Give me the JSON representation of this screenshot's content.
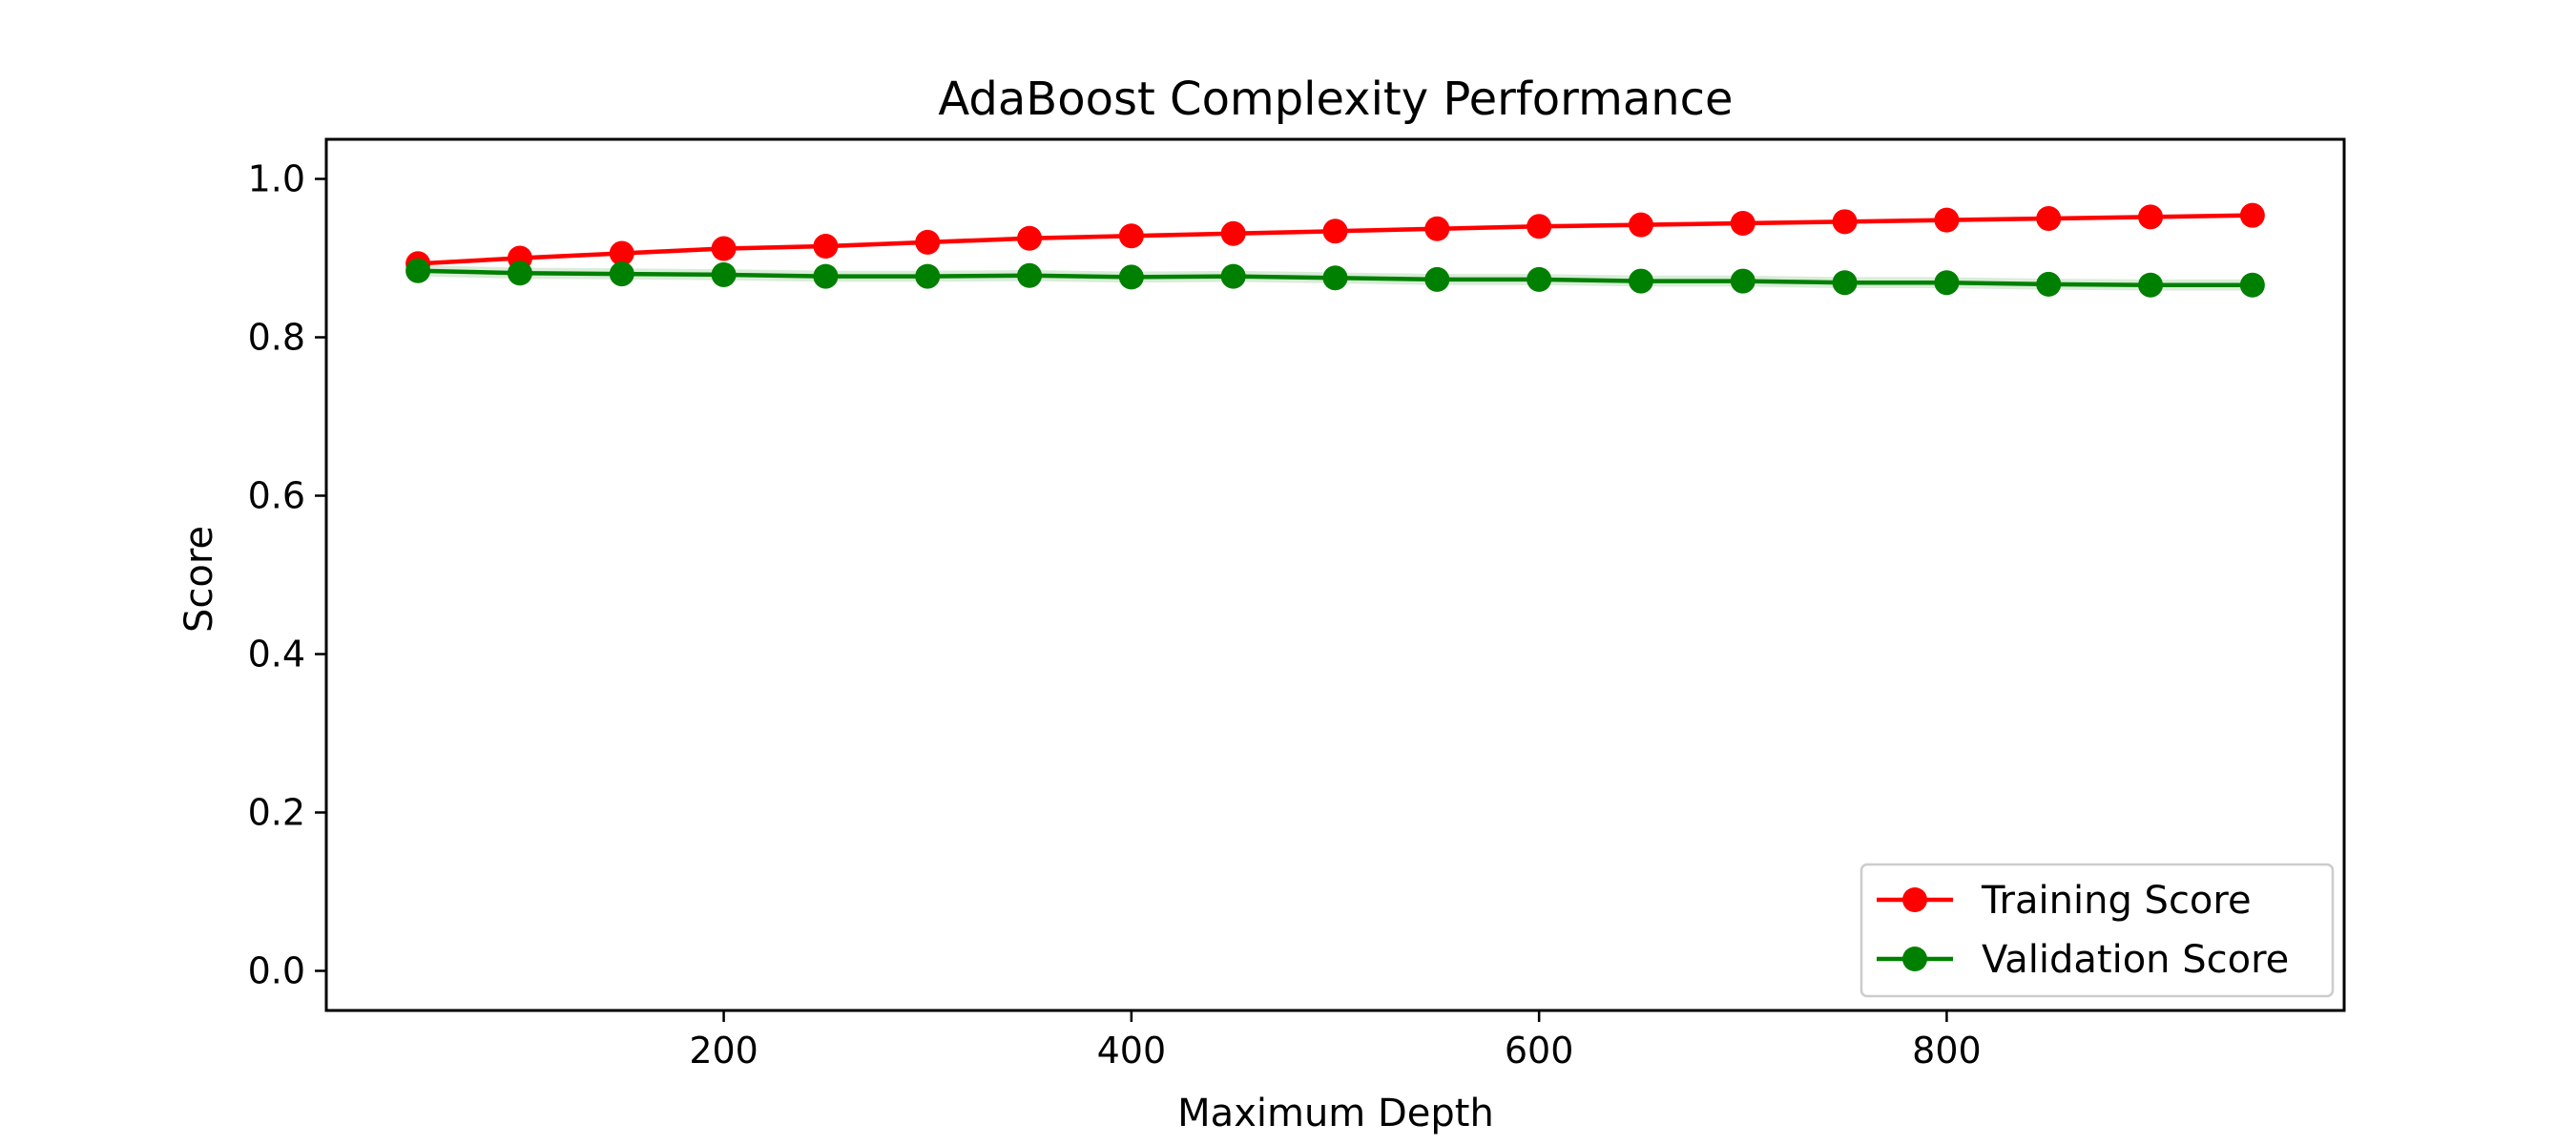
{
  "chart_data": {
    "type": "line",
    "title": "AdaBoost Complexity Performance",
    "xlabel": "Maximum Depth",
    "ylabel": "Score",
    "xlim": [
      5,
      995
    ],
    "ylim": [
      -0.05,
      1.05
    ],
    "xticks": [
      200,
      400,
      600,
      800
    ],
    "yticks": [
      0.0,
      0.2,
      0.4,
      0.6,
      0.8,
      1.0
    ],
    "xtick_labels": [
      "200",
      "400",
      "600",
      "800"
    ],
    "ytick_labels": [
      "0.0",
      "0.2",
      "0.4",
      "0.6",
      "0.8",
      "1.0"
    ],
    "grid": false,
    "legend_position": "lower-right",
    "x": [
      50,
      100,
      150,
      200,
      250,
      300,
      350,
      400,
      450,
      500,
      550,
      600,
      650,
      700,
      750,
      800,
      850,
      900,
      950
    ],
    "series": [
      {
        "name": "Training Score",
        "color": "#ff0000",
        "values": [
          0.893,
          0.9,
          0.906,
          0.912,
          0.915,
          0.92,
          0.925,
          0.928,
          0.931,
          0.934,
          0.937,
          0.94,
          0.942,
          0.944,
          0.946,
          0.948,
          0.95,
          0.952,
          0.954
        ],
        "band": 0.003
      },
      {
        "name": "Validation Score",
        "color": "#008000",
        "values": [
          0.884,
          0.881,
          0.88,
          0.879,
          0.877,
          0.877,
          0.878,
          0.876,
          0.877,
          0.875,
          0.873,
          0.873,
          0.871,
          0.871,
          0.869,
          0.869,
          0.867,
          0.866,
          0.866
        ],
        "band": 0.007
      }
    ]
  }
}
